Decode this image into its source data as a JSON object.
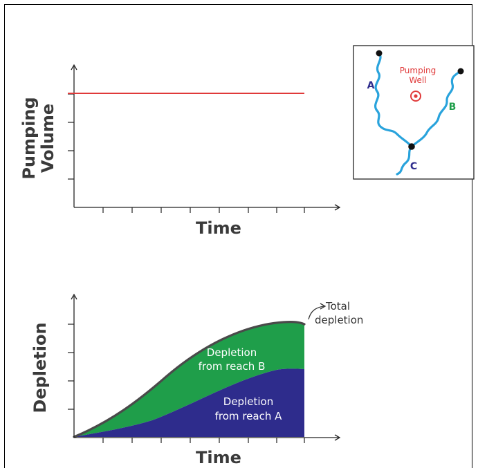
{
  "top_chart": {
    "ylabel_line1": "Pumping",
    "ylabel_line2": "Volume",
    "xlabel": "Time",
    "line_color": "#e03a3a"
  },
  "bottom_chart": {
    "ylabel": "Depletion",
    "xlabel": "Time",
    "total_label_line1": "Total",
    "total_label_line2": "depletion",
    "reach_b_line1": "Depletion",
    "reach_b_line2": "from reach B",
    "reach_a_line1": "Depletion",
    "reach_a_line2": "from reach A",
    "color_reach_a": "#2e2c8c",
    "color_reach_b": "#1f9e4a"
  },
  "inset_map": {
    "label_a": "A",
    "label_b": "B",
    "label_c": "C",
    "well_line1": "Pumping",
    "well_line2": "Well",
    "river_color": "#29a3dc",
    "well_color": "#e03a3a"
  }
}
